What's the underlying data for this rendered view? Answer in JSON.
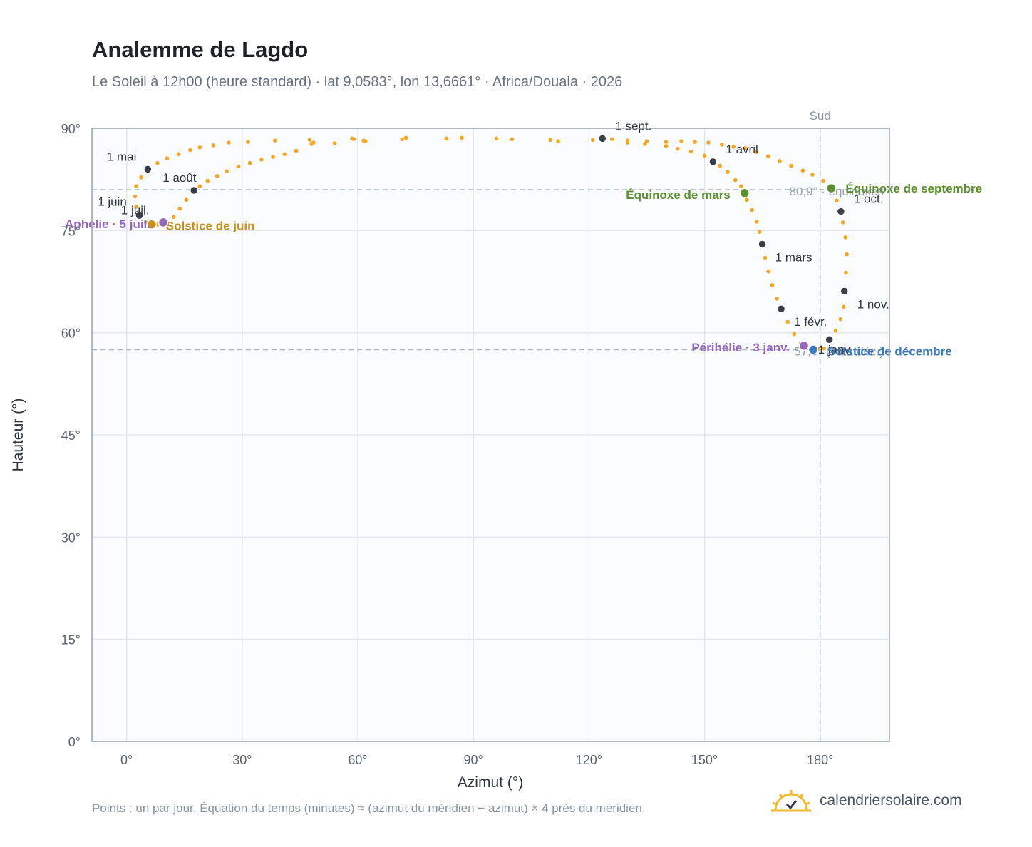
{
  "title": "Analemme de Lagdo",
  "subtitle": "Le Soleil à 12h00 (heure standard) · lat 9,0583°, lon 13,6661° · Africa/Douala · 2026",
  "footnote": "Points : un par jour. Équation du temps (minutes) ≈ (azimut du méridien − azimut) × 4 près du méridien.",
  "brand": {
    "name": "calendriersolaire.com",
    "icon": "sun-check-icon"
  },
  "colors": {
    "curve": "#f5a623",
    "month_marker": "#3a3f47",
    "solstice_june": "#c8901a",
    "solstice_dec": "#3b7bbf",
    "equinox": "#5a8f2e",
    "aphelion": "#9467bd",
    "grid": "#e3e7ec",
    "plot_bg": "#fafcfe",
    "frame": "#9aa5b1",
    "ref_line": "#aeb8c3"
  },
  "chart_data": {
    "type": "scatter",
    "title": "Analemme de Lagdo",
    "xlabel": "Azimut (°)",
    "ylabel": "Hauteur (°)",
    "xlim": [
      -9,
      198
    ],
    "ylim": [
      0,
      90
    ],
    "xticks": [
      0,
      30,
      60,
      90,
      120,
      150,
      180
    ],
    "xtick_labels": [
      "0°",
      "30°",
      "60°",
      "90°",
      "120°",
      "150°",
      "180°"
    ],
    "yticks": [
      0,
      15,
      30,
      45,
      60,
      75,
      90
    ],
    "ytick_labels": [
      "0°",
      "15°",
      "30°",
      "45°",
      "60°",
      "75°",
      "90°"
    ],
    "grid": true,
    "south_line": {
      "azimuth": 180,
      "label": "Sud"
    },
    "reference_lines": [
      {
        "altitude": 81,
        "label": "80,9° · équinoxes"
      },
      {
        "altitude": 57.5,
        "label": "57,5° (≈ 21 déc.)"
      }
    ],
    "daily_series": {
      "name": "",
      "points": [
        [
          178.0,
          57.7
        ],
        [
          179.5,
          57.6
        ],
        [
          181.0,
          57.7
        ],
        [
          182.5,
          58.9
        ],
        [
          184.0,
          60.3
        ],
        [
          185.3,
          62.0
        ],
        [
          186.1,
          63.8
        ],
        [
          186.5,
          66.1
        ],
        [
          186.7,
          68.8
        ],
        [
          186.9,
          71.5
        ],
        [
          186.6,
          74.0
        ],
        [
          185.9,
          76.2
        ],
        [
          185.4,
          77.8
        ],
        [
          184.3,
          79.4
        ],
        [
          183.0,
          81.0
        ],
        [
          180.8,
          82.3
        ],
        [
          178.0,
          83.2
        ],
        [
          175.5,
          83.8
        ],
        [
          172.5,
          84.5
        ],
        [
          169.5,
          85.2
        ],
        [
          166.5,
          85.9
        ],
        [
          163.5,
          86.5
        ],
        [
          160.5,
          87.1
        ],
        [
          157.5,
          87.3
        ],
        [
          154.5,
          87.6
        ],
        [
          151.0,
          87.9
        ],
        [
          147.5,
          88.0
        ],
        [
          144.0,
          88.1
        ],
        [
          140.0,
          88.0
        ],
        [
          135.0,
          88.1
        ],
        [
          130.0,
          88.2
        ],
        [
          126.0,
          88.4
        ],
        [
          123.5,
          88.5
        ],
        [
          121.0,
          88.3
        ],
        [
          112.0,
          88.1
        ],
        [
          110.0,
          88.3
        ],
        [
          100.0,
          88.4
        ],
        [
          96.0,
          88.5
        ],
        [
          87.0,
          88.6
        ],
        [
          83.0,
          88.5
        ],
        [
          72.5,
          88.6
        ],
        [
          71.5,
          88.4
        ],
        [
          62.0,
          88.1
        ],
        [
          59.0,
          88.4
        ],
        [
          54.0,
          87.8
        ],
        [
          48.0,
          87.7
        ],
        [
          44.0,
          86.7
        ],
        [
          41.0,
          86.2
        ],
        [
          38.0,
          85.8
        ],
        [
          35.0,
          85.4
        ],
        [
          32.0,
          84.9
        ],
        [
          29.0,
          84.4
        ],
        [
          26.0,
          83.7
        ],
        [
          23.5,
          83.0
        ],
        [
          21.0,
          82.3
        ],
        [
          19.0,
          81.5
        ],
        [
          17.5,
          80.9
        ],
        [
          15.5,
          79.5
        ],
        [
          13.8,
          78.2
        ],
        [
          12.2,
          77.0
        ],
        [
          10.5,
          75.9
        ],
        [
          9.5,
          76.0
        ],
        [
          8.0,
          75.9
        ],
        [
          6.5,
          75.9
        ],
        [
          5.0,
          76.2
        ],
        [
          3.5,
          77.2
        ],
        [
          2.5,
          78.5
        ],
        [
          2.2,
          80.0
        ],
        [
          2.5,
          81.5
        ],
        [
          3.8,
          82.8
        ],
        [
          5.5,
          84.0
        ],
        [
          8.0,
          84.9
        ],
        [
          10.5,
          85.6
        ],
        [
          13.5,
          86.2
        ],
        [
          16.5,
          86.8
        ],
        [
          19.0,
          87.2
        ],
        [
          22.5,
          87.5
        ],
        [
          26.5,
          87.9
        ],
        [
          31.5,
          88.0
        ],
        [
          38.5,
          88.2
        ],
        [
          47.5,
          88.3
        ],
        [
          48.5,
          87.9
        ],
        [
          58.5,
          88.5
        ],
        [
          61.5,
          88.2
        ],
        [
          130.0,
          87.9
        ],
        [
          134.5,
          87.7
        ],
        [
          140.0,
          87.4
        ],
        [
          143.0,
          87.0
        ],
        [
          146.5,
          86.6
        ],
        [
          150.0,
          86.0
        ],
        [
          152.0,
          85.1
        ],
        [
          154.0,
          84.5
        ],
        [
          156.0,
          83.6
        ],
        [
          158.0,
          82.4
        ],
        [
          159.5,
          81.5
        ],
        [
          160.2,
          80.5
        ],
        [
          161.0,
          79.5
        ],
        [
          162.3,
          78.0
        ],
        [
          163.5,
          76.3
        ],
        [
          164.3,
          74.8
        ],
        [
          165.0,
          73.0
        ],
        [
          165.7,
          71.0
        ],
        [
          166.6,
          69.0
        ],
        [
          167.6,
          67.0
        ],
        [
          168.8,
          65.0
        ],
        [
          170.0,
          63.5
        ],
        [
          171.6,
          61.6
        ],
        [
          173.3,
          59.8
        ],
        [
          175.0,
          58.4
        ],
        [
          176.8,
          57.8
        ]
      ]
    },
    "month_markers": [
      {
        "label": "1 janv.",
        "azimuth": 182.4,
        "altitude": 59.0
      },
      {
        "label": "1 févr.",
        "azimuth": 169.9,
        "altitude": 63.5
      },
      {
        "label": "1 mars",
        "azimuth": 165.0,
        "altitude": 73.0
      },
      {
        "label": "1 avril",
        "azimuth": 152.2,
        "altitude": 85.1
      },
      {
        "label": "1 mai",
        "azimuth": 5.5,
        "altitude": 84.0
      },
      {
        "label": "1 juin",
        "azimuth": 3.0,
        "altitude": 77.4
      },
      {
        "label": "1 juil.",
        "azimuth": 3.3,
        "altitude": 77.2
      },
      {
        "label": "1 août",
        "azimuth": 17.5,
        "altitude": 80.9
      },
      {
        "label": "1 sept.",
        "azimuth": 123.5,
        "altitude": 88.5
      },
      {
        "label": "1 oct.",
        "azimuth": 185.4,
        "altitude": 77.8
      },
      {
        "label": "1 nov.",
        "azimuth": 186.3,
        "altitude": 66.1
      }
    ],
    "events": [
      {
        "label": "Solstice de juin",
        "azimuth": 6.5,
        "altitude": 75.9,
        "color": "#c8901a"
      },
      {
        "label": "Aphélie · 5 juil.",
        "azimuth": 9.5,
        "altitude": 76.2,
        "color": "#9467bd"
      },
      {
        "label": "Équinoxe de mars",
        "azimuth": 160.4,
        "altitude": 80.5,
        "color": "#5a8f2e"
      },
      {
        "label": "Équinoxe de septembre",
        "azimuth": 182.9,
        "altitude": 81.2,
        "color": "#5a8f2e"
      },
      {
        "label": "Périhélie · 3 janv.",
        "azimuth": 175.8,
        "altitude": 58.1,
        "color": "#9467bd"
      },
      {
        "label": "Solstice de décembre",
        "azimuth": 178.2,
        "altitude": 57.5,
        "color": "#3b7bbf"
      }
    ]
  }
}
